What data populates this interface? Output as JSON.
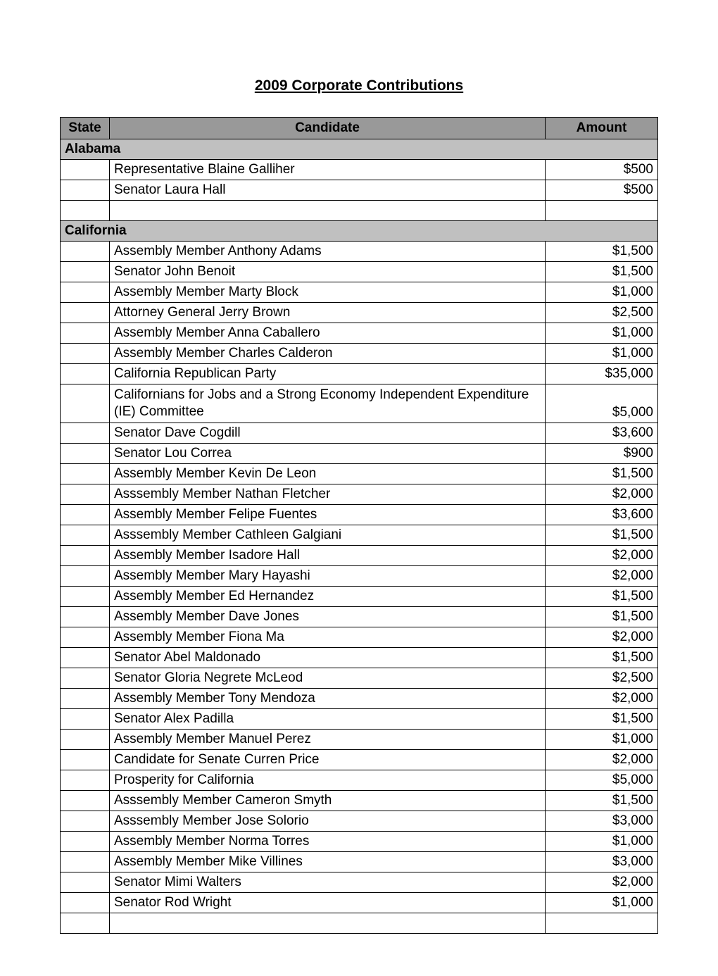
{
  "title": "2009 Corporate Contributions",
  "columns": {
    "state": "State",
    "candidate": "Candidate",
    "amount": "Amount"
  },
  "header_bg": "#999999",
  "group_bg": "#c0c0c0",
  "rows": [
    {
      "type": "group",
      "label": "Alabama"
    },
    {
      "type": "row",
      "candidate": "Representative Blaine Galliher",
      "amount": "$500"
    },
    {
      "type": "row",
      "candidate": "Senator Laura Hall",
      "amount": "$500"
    },
    {
      "type": "blank"
    },
    {
      "type": "group",
      "label": "California"
    },
    {
      "type": "row",
      "candidate": "Assembly Member Anthony Adams",
      "amount": "$1,500"
    },
    {
      "type": "row",
      "candidate": "Senator John Benoit",
      "amount": "$1,500"
    },
    {
      "type": "row",
      "candidate": "Assembly  Member Marty Block",
      "amount": "$1,000"
    },
    {
      "type": "row",
      "candidate": "Attorney General Jerry Brown",
      "amount": "$2,500"
    },
    {
      "type": "row",
      "candidate": "Assembly Member Anna Caballero",
      "amount": "$1,000"
    },
    {
      "type": "row",
      "candidate": "Assembly Member Charles Calderon",
      "amount": "$1,000"
    },
    {
      "type": "row",
      "candidate": "California Republican Party",
      "amount": "$35,000"
    },
    {
      "type": "row",
      "candidate": "Californians for Jobs and a Strong Economy Independent Expenditure (IE) Committee",
      "amount": "$5,000",
      "wrap": true
    },
    {
      "type": "row",
      "candidate": "Senator Dave Cogdill",
      "amount": "$3,600"
    },
    {
      "type": "row",
      "candidate": "Senator Lou Correa",
      "amount": "$900"
    },
    {
      "type": "row",
      "candidate": "Assembly Member Kevin De Leon",
      "amount": "$1,500"
    },
    {
      "type": "row",
      "candidate": "Asssembly Member Nathan Fletcher",
      "amount": "$2,000"
    },
    {
      "type": "row",
      "candidate": "Assembly Member Felipe Fuentes",
      "amount": "$3,600"
    },
    {
      "type": "row",
      "candidate": "Asssembly Member Cathleen Galgiani",
      "amount": "$1,500"
    },
    {
      "type": "row",
      "candidate": "Assembly Member Isadore Hall",
      "amount": "$2,000"
    },
    {
      "type": "row",
      "candidate": "Assembly Member Mary Hayashi",
      "amount": "$2,000"
    },
    {
      "type": "row",
      "candidate": "Assembly Member Ed Hernandez",
      "amount": "$1,500"
    },
    {
      "type": "row",
      "candidate": "Assembly  Member Dave Jones",
      "amount": "$1,500"
    },
    {
      "type": "row",
      "candidate": "Assembly Member Fiona Ma",
      "amount": "$2,000"
    },
    {
      "type": "row",
      "candidate": "Senator Abel Maldonado",
      "amount": "$1,500"
    },
    {
      "type": "row",
      "candidate": "Senator Gloria Negrete McLeod",
      "amount": "$2,500"
    },
    {
      "type": "row",
      "candidate": "Assembly Member Tony Mendoza",
      "amount": "$2,000"
    },
    {
      "type": "row",
      "candidate": "Senator Alex  Padilla",
      "amount": "$1,500"
    },
    {
      "type": "row",
      "candidate": "Assembly  Member Manuel Perez",
      "amount": "$1,000"
    },
    {
      "type": "row",
      "candidate": "Candidate for Senate Curren Price",
      "amount": "$2,000"
    },
    {
      "type": "row",
      "candidate": "Prosperity for California",
      "amount": "$5,000"
    },
    {
      "type": "row",
      "candidate": "Asssembly Member Cameron Smyth",
      "amount": "$1,500"
    },
    {
      "type": "row",
      "candidate": "Asssembly Member Jose Solorio",
      "amount": "$3,000"
    },
    {
      "type": "row",
      "candidate": "Assembly Member Norma Torres",
      "amount": "$1,000"
    },
    {
      "type": "row",
      "candidate": "Assembly Member Mike Villines",
      "amount": "$3,000"
    },
    {
      "type": "row",
      "candidate": "Senator Mimi Walters",
      "amount": "$2,000"
    },
    {
      "type": "row",
      "candidate": "Senator Rod Wright",
      "amount": "$1,000"
    },
    {
      "type": "blank"
    }
  ]
}
